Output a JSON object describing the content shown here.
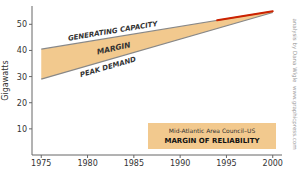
{
  "chart_data": {
    "type": "area",
    "ylabel": "Gigawatts",
    "xlim": [
      1974,
      2001
    ],
    "xticks": [
      1975,
      1980,
      1985,
      1990,
      1995,
      2000
    ],
    "ylim": [
      0,
      57
    ],
    "yticks": [
      10,
      20,
      30,
      40,
      50
    ],
    "grid": false,
    "series": [
      {
        "name": "GENERATING CAPACITY",
        "x": [
          1975,
          2000
        ],
        "values": [
          40.5,
          55.0
        ],
        "color": "#888888"
      },
      {
        "name": "PEAK DEMAND",
        "x": [
          1975,
          2000
        ],
        "values": [
          29.0,
          54.5
        ],
        "color": "#888888"
      }
    ],
    "fill": {
      "name": "MARGIN",
      "color": "#f2c98e"
    },
    "highlight": {
      "x": [
        1994,
        2000
      ],
      "values": [
        51.52,
        55.0
      ],
      "color": "#cc2200"
    },
    "box": {
      "lines": [
        "Mid-Atlantic Area Council–US",
        "MARGIN OF RELIABILITY"
      ],
      "color": "#f2c98e"
    },
    "credit": "analysis by Dana Wigle  www.graphicpress.com"
  }
}
